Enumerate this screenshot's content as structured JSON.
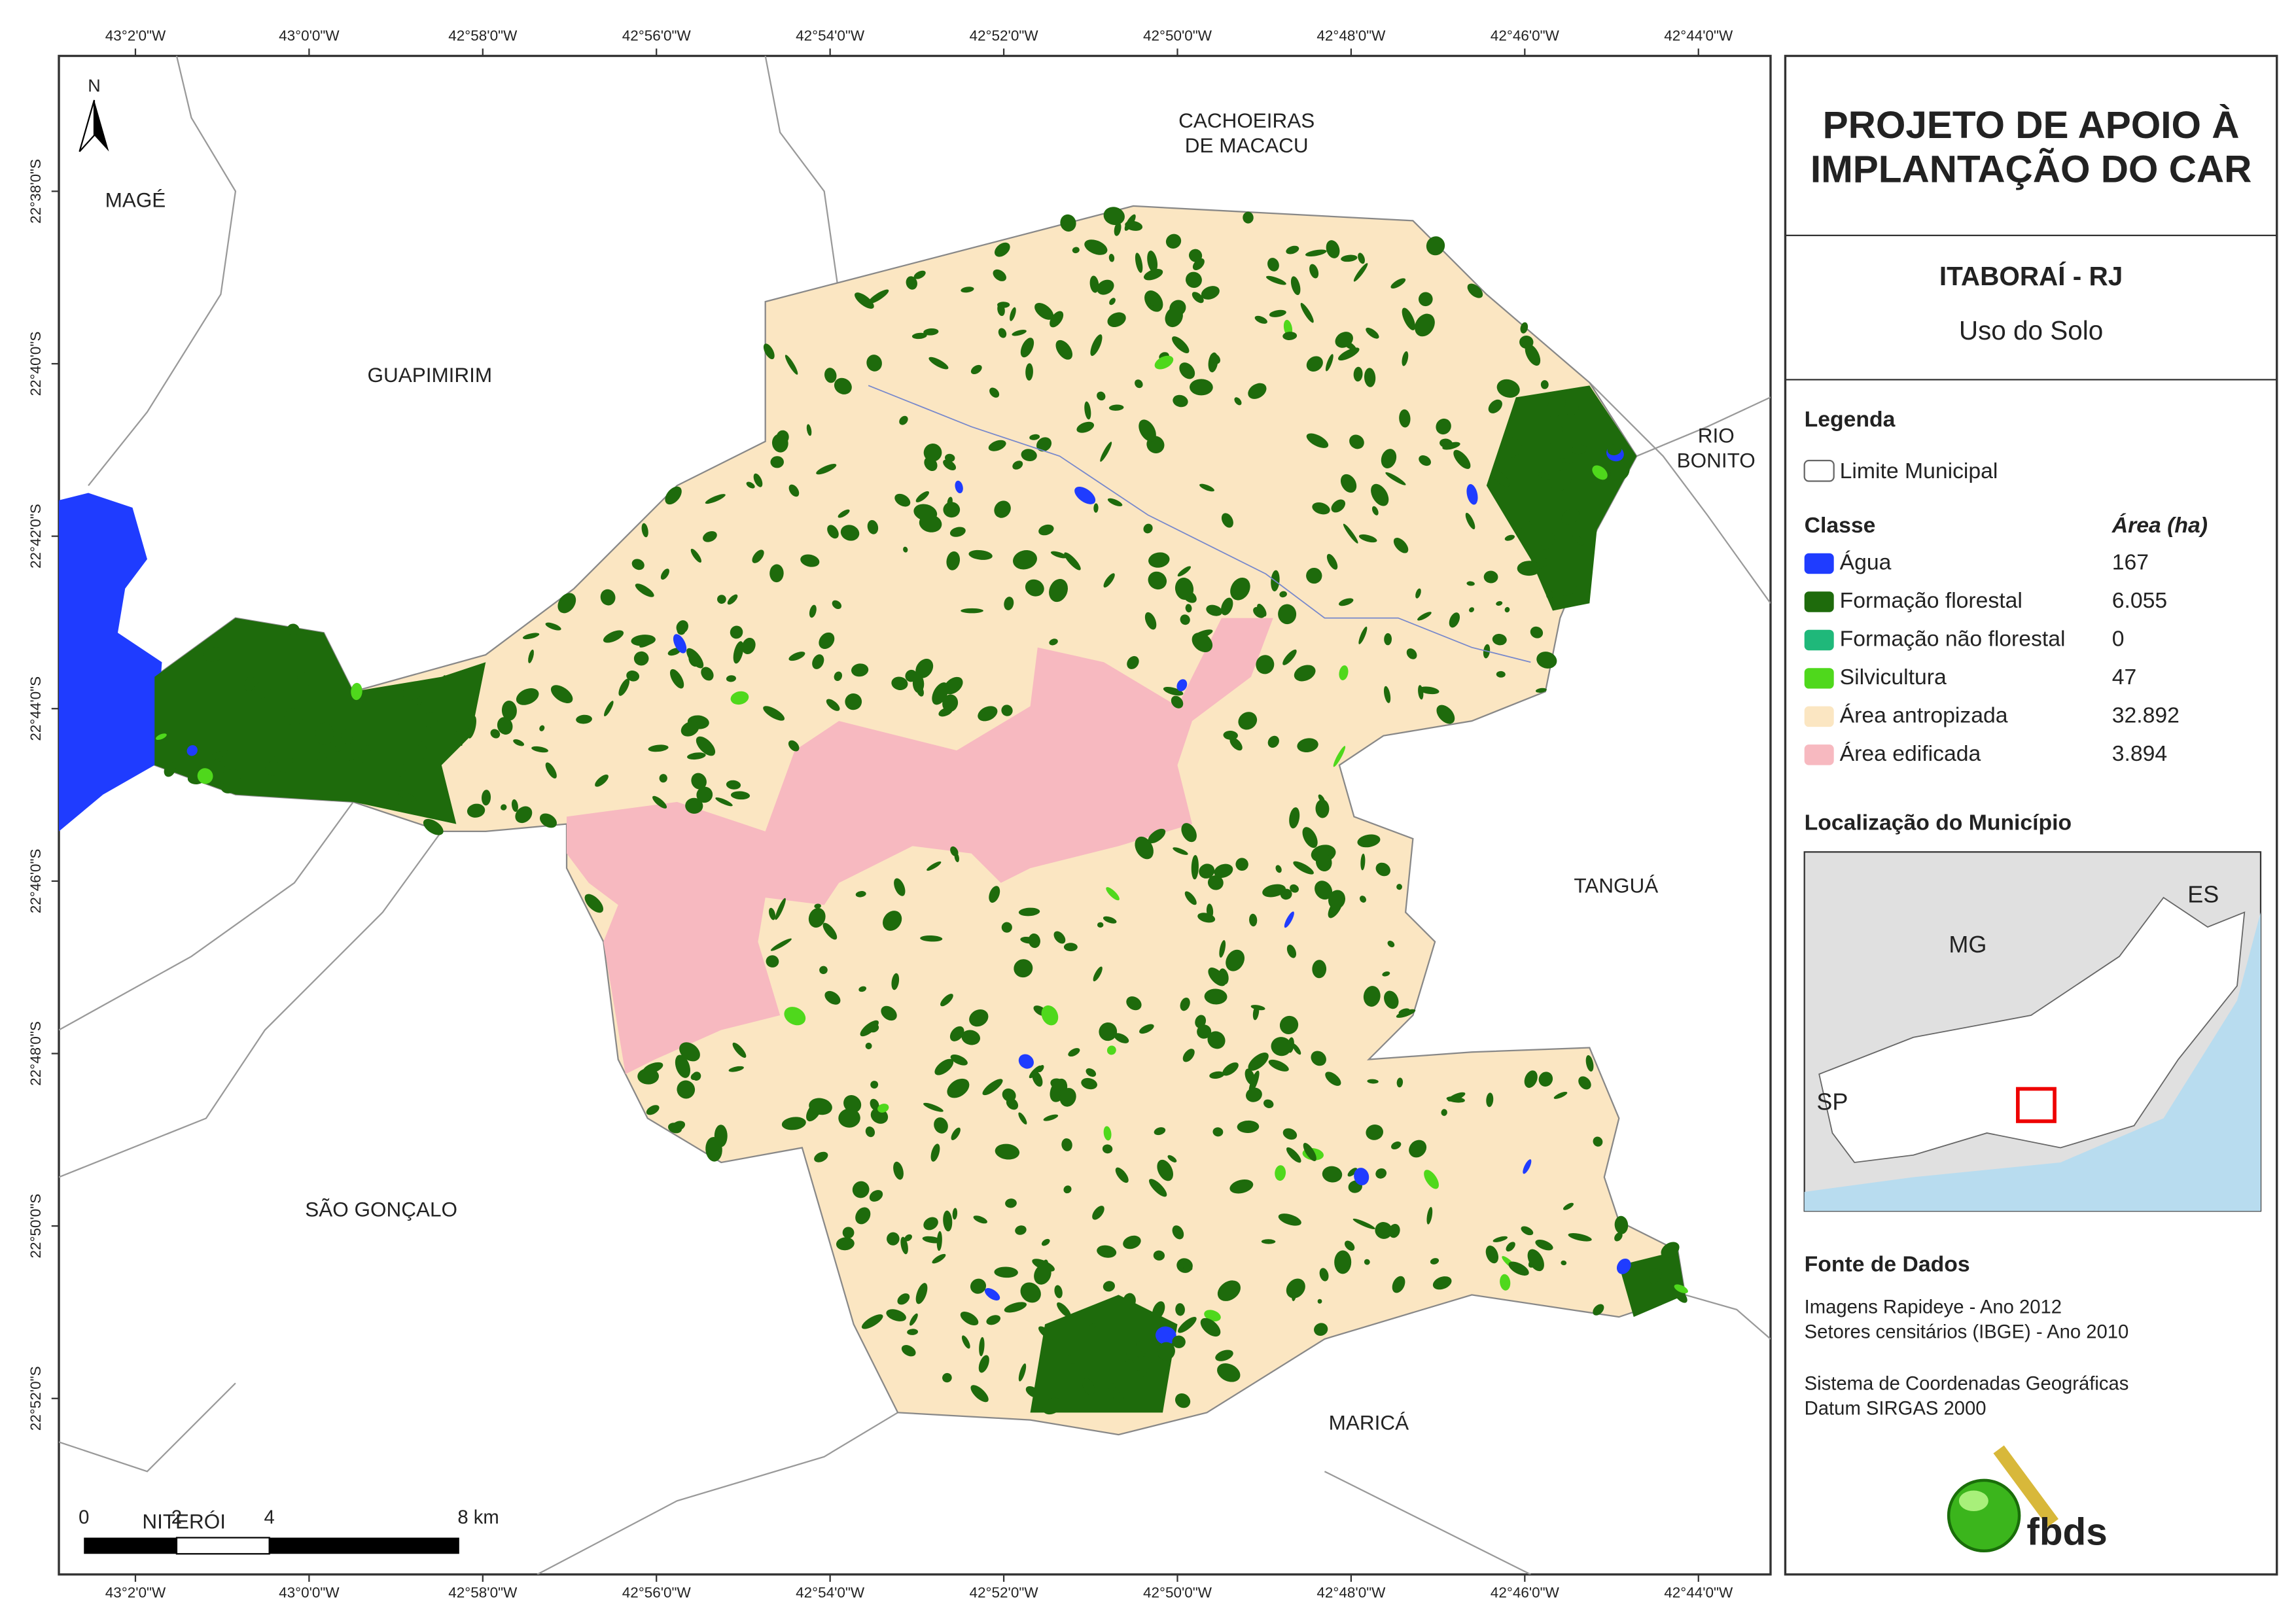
{
  "title_lines": [
    "PROJETO DE APOIO À",
    "IMPLANTAÇÃO DO CAR"
  ],
  "municipality": "ITABORAÍ - RJ",
  "subtitle": "Uso do Solo",
  "legend": {
    "title": "Legenda",
    "boundary": "Limite Municipal",
    "class_header": "Classe",
    "area_header": "Área (ha)",
    "classes": [
      {
        "name": "Água",
        "area": "167",
        "color": "#1f3cff"
      },
      {
        "name": "Formação florestal",
        "area": "6.055",
        "color": "#1e6b0c"
      },
      {
        "name": "Formação não florestal",
        "area": "0",
        "color": "#1fb87a"
      },
      {
        "name": "Silvicultura",
        "area": "47",
        "color": "#4fd81c"
      },
      {
        "name": "Área antropizada",
        "area": "32.892",
        "color": "#fbe6c2"
      },
      {
        "name": "Área edificada",
        "area": "3.894",
        "color": "#f7b9c0"
      }
    ]
  },
  "location": {
    "title": "Localização do Município",
    "labels": [
      "ES",
      "MG",
      "SP"
    ]
  },
  "sources": {
    "title": "Fonte de Dados",
    "lines": [
      "Imagens Rapideye - Ano 2012",
      "Setores censitários (IBGE) - Ano 2010",
      "Sistema de Coordenadas Geográficas",
      "Datum SIRGAS 2000"
    ]
  },
  "map": {
    "north": "N",
    "lon_labels": [
      "43°2'0\"W",
      "43°0'0\"W",
      "42°58'0\"W",
      "42°56'0\"W",
      "42°54'0\"W",
      "42°52'0\"W",
      "42°50'0\"W",
      "42°48'0\"W",
      "42°46'0\"W",
      "42°44'0\"W"
    ],
    "lat_labels": [
      "22°38'0\"S",
      "22°40'0\"S",
      "22°42'0\"S",
      "22°44'0\"S",
      "22°46'0\"S",
      "22°48'0\"S",
      "22°50'0\"S",
      "22°52'0\"S"
    ],
    "places": [
      [
        "MAGÉ"
      ],
      [
        "CACHOEIRAS",
        "DE MACACU"
      ],
      [
        "GUAPIMIRIM"
      ],
      [
        "RIO",
        "BONITO"
      ],
      [
        "TANGUÁ"
      ],
      [
        "SÃO GONÇALO"
      ],
      [
        "MARICÁ"
      ],
      [
        "NITERÓI"
      ]
    ],
    "scale_labels": [
      "0",
      "2",
      "4",
      "8 km"
    ]
  },
  "logo": "fbds"
}
